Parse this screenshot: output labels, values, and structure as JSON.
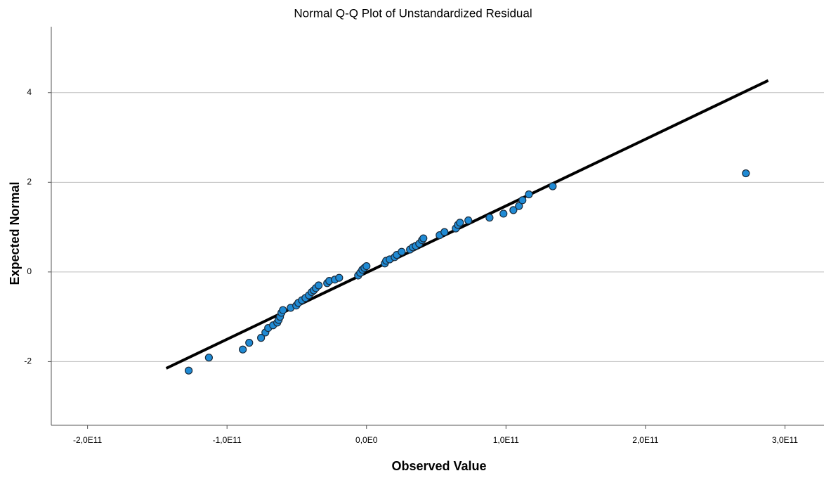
{
  "chart_data": {
    "type": "scatter",
    "title": "Normal Q-Q Plot of Unstandardized Residual",
    "x_label": "Observed Value",
    "y_label": "Expected Normal",
    "xlim": [
      -226000000000.0,
      328000000000.0
    ],
    "ylim": [
      -3.42,
      5.47
    ],
    "xticks": [
      {
        "value": -200000000000.0,
        "label": "-2,0E11"
      },
      {
        "value": -100000000000.0,
        "label": "-1,0E11"
      },
      {
        "value": 0,
        "label": "0,0E0"
      },
      {
        "value": 100000000000.0,
        "label": "1,0E11"
      },
      {
        "value": 200000000000.0,
        "label": "2,0E11"
      },
      {
        "value": 300000000000.0,
        "label": "3,0E11"
      }
    ],
    "yticks": [
      -2,
      0,
      2,
      4
    ],
    "grid": true,
    "color": "#1f8ad4",
    "x": [
      -127500000000.0,
      -113000000000.0,
      -88700000000.0,
      -84100000000.0,
      -75600000000.0,
      -72500000000.0,
      -70500000000.0,
      -67000000000.0,
      -64000000000.0,
      -63000000000.0,
      -62000000000.0,
      -61000000000.0,
      -59900000000.0,
      -54400000000.0,
      -50400000000.0,
      -48900000000.0,
      -46300000000.0,
      -43800000000.0,
      -41300000000.0,
      -39300000000.0,
      -37800000000.0,
      -36300000000.0,
      -34300000000.0,
      -28200000000.0,
      -26700000000.0,
      -22700000000.0,
      -19600000000.0,
      -6000000000.0,
      -4500000000.0,
      -3000000000.0,
      -1500000000.0,
      0,
      13100000000.0,
      14100000000.0,
      16600000000.0,
      20200000000.0,
      21700000000.0,
      25200000000.0,
      31200000000.0,
      33200000000.0,
      35300000000.0,
      37800000000.0,
      39800000000.0,
      40800000000.0,
      52400000000.0,
      55900000000.0,
      64000000000.0,
      65500000000.0,
      67000000000.0,
      73000000000.0,
      88200000000.0,
      98200000000.0,
      105300000000.0,
      109300000000.0,
      111800000000.0,
      116400000000.0,
      133500000000.0,
      272000000000.0
    ],
    "values": [
      -2.2,
      -1.91,
      -1.73,
      -1.58,
      -1.47,
      -1.35,
      -1.25,
      -1.19,
      -1.13,
      -1.07,
      -1.0,
      -0.91,
      -0.85,
      -0.8,
      -0.75,
      -0.69,
      -0.63,
      -0.58,
      -0.52,
      -0.45,
      -0.41,
      -0.36,
      -0.3,
      -0.25,
      -0.2,
      -0.17,
      -0.13,
      -0.08,
      -0.02,
      0.05,
      0.09,
      0.13,
      0.19,
      0.25,
      0.28,
      0.33,
      0.38,
      0.45,
      0.5,
      0.55,
      0.58,
      0.63,
      0.71,
      0.75,
      0.82,
      0.89,
      0.97,
      1.05,
      1.1,
      1.15,
      1.21,
      1.3,
      1.38,
      1.47,
      1.6,
      1.73,
      1.91,
      2.2
    ],
    "reference_line": {
      "x": [
        -143600000000.0,
        288000000000.0
      ],
      "values": [
        -2.15,
        4.27
      ],
      "color": "#000000"
    }
  }
}
